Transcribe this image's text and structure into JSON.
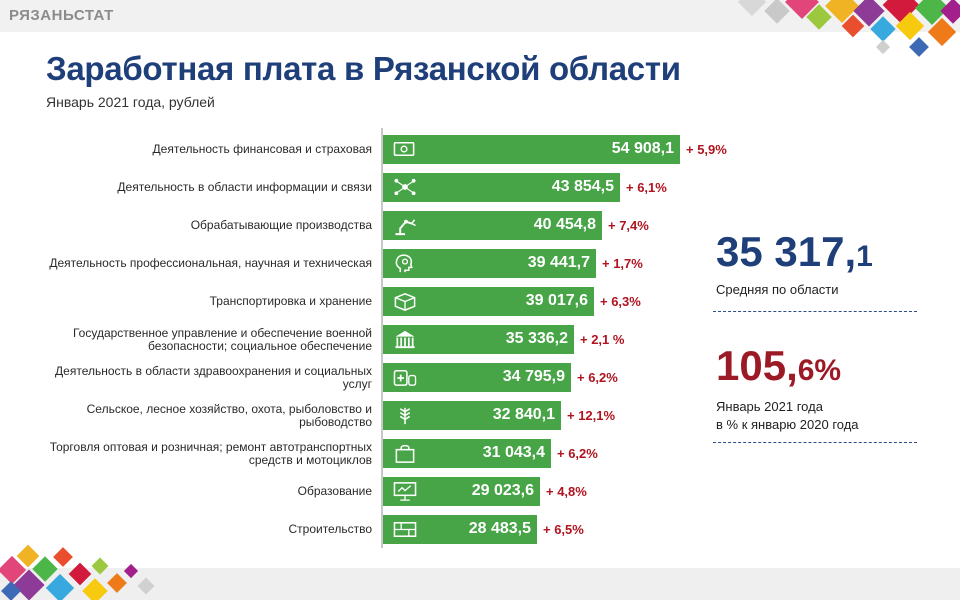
{
  "brand": "РЯЗАНЬСТАТ",
  "title": "Заработная плата в Рязанской области",
  "subtitle": "Январь 2021 года, рублей",
  "summary": {
    "average_main": "35 317,",
    "average_decimal": "1",
    "average_label": "Средняя по области",
    "percent_main": "105,",
    "percent_decimal": "6%",
    "percent_label_1": "Январь 2021 года",
    "percent_label_2": "в % к январю 2020 года"
  },
  "colors": {
    "bar": "#47a447",
    "title": "#1f3f7a",
    "change": "#b0141f",
    "percent": "#9c1a26"
  },
  "chart_data": {
    "type": "bar",
    "orientation": "horizontal",
    "title": "Заработная плата в Рязанской области",
    "subtitle": "Январь 2021 года, рублей",
    "categories": [
      "Деятельность финансовая и страховая",
      "Деятельность в области информации и связи",
      "Обрабатывающие производства",
      "Деятельность профессиональная, научная и техническая",
      "Транспортировка и хранение",
      "Государственное управление и обеспечение военной безопасности; социальное обеспечение",
      "Деятельность в области здравоохранения и социальных услуг",
      "Сельское, лесное хозяйство, охота, рыболовство и рыбоводство",
      "Торговля оптовая и розничная; ремонт автотранспортных средств и мотоциклов",
      "Образование",
      "Строительство"
    ],
    "values": [
      54908.1,
      43854.5,
      40454.8,
      39441.7,
      39017.6,
      35336.2,
      34795.9,
      32840.1,
      31043.4,
      29023.6,
      28483.5
    ],
    "value_labels": [
      "54 908,1",
      "43 854,5",
      "40 454,8",
      "39 441,7",
      "39 017,6",
      "35 336,2",
      "34 795,9",
      "32 840,1",
      "31 043,4",
      "29 023,6",
      "28 483,5"
    ],
    "changes": [
      "+ 5,9%",
      "+ 6,1%",
      "+ 7,4%",
      "+ 1,7%",
      "+ 6,3%",
      "+ 2,1 %",
      "+ 6,2%",
      "+ 12,1%",
      "+ 6,2%",
      "+ 4,8%",
      "+ 6,5%"
    ],
    "icons": [
      "money-icon",
      "network-icon",
      "robot-arm-icon",
      "head-gear-icon",
      "box-icon",
      "government-icon",
      "medicine-icon",
      "wheat-icon",
      "shopping-bag-icon",
      "presentation-icon",
      "brick-icon"
    ],
    "xlim": [
      0,
      54908.1
    ]
  }
}
